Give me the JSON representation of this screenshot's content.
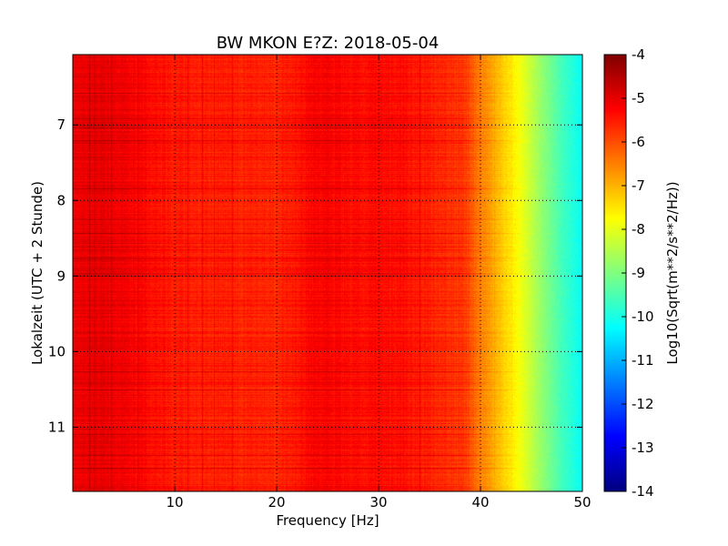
{
  "chart_data": {
    "type": "heatmap",
    "title": "BW MKON E?Z: 2018-05-04",
    "xlabel": "Frequency [Hz]",
    "ylabel": "Lokalzeit (UTC + 2 Stunde)",
    "xlim": [
      0,
      50
    ],
    "ylim": [
      11.85,
      6.07
    ],
    "y_inverted": true,
    "x_ticks": [
      10,
      20,
      30,
      40,
      50
    ],
    "y_ticks": [
      7,
      8,
      9,
      10,
      11
    ],
    "grid": true,
    "colormap": "jet",
    "colorbar": {
      "label": "Log10(Sqrt(m**2/s**2/Hz))",
      "range": [
        -14,
        -4
      ],
      "ticks": [
        -4,
        -5,
        -6,
        -7,
        -8,
        -9,
        -10,
        -11,
        -12,
        -13,
        -14
      ]
    },
    "frequency_profile_hz": [
      0,
      3,
      10,
      20,
      24,
      28,
      32,
      36,
      38.5,
      40,
      42,
      44,
      46,
      48,
      50
    ],
    "frequency_profile_value": [
      -5.1,
      -5.0,
      -5.5,
      -5.6,
      -5.2,
      -5.35,
      -5.35,
      -5.6,
      -5.8,
      -6.5,
      -7.2,
      -7.9,
      -8.8,
      -9.6,
      -10.2
    ]
  }
}
